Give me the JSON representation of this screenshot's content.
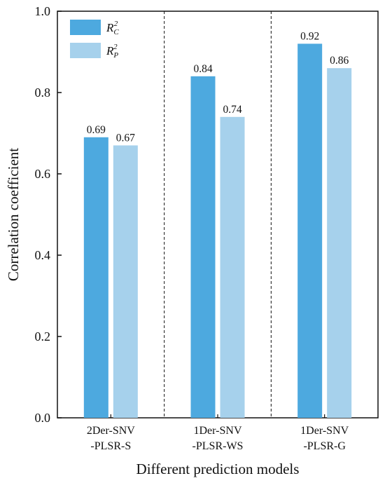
{
  "chart_data": {
    "type": "bar",
    "title": "",
    "xlabel": "Different prediction models",
    "ylabel": "Correlation coefficient",
    "ylim": [
      0.0,
      1.0
    ],
    "yticks": [
      "0.0",
      "0.2",
      "0.4",
      "0.6",
      "0.8",
      "1.0"
    ],
    "categories": [
      [
        "2Der-SNV",
        "-PLSR-S"
      ],
      [
        "1Der-SNV",
        "-PLSR-WS"
      ],
      [
        "1Der-SNV",
        "-PLSR-G"
      ]
    ],
    "series": [
      {
        "name": "R_C^2",
        "values": [
          0.69,
          0.84,
          0.92
        ],
        "labels": [
          "0.69",
          "0.84",
          "0.92"
        ],
        "color": "#4DA9DF"
      },
      {
        "name": "R_P^2",
        "values": [
          0.67,
          0.74,
          0.86
        ],
        "labels": [
          "0.67",
          "0.74",
          "0.86"
        ],
        "color": "#A6D1EC"
      }
    ],
    "legend": {
      "placement": "top-left",
      "entries": [
        {
          "base": "R",
          "sub": "C",
          "sup": "2"
        },
        {
          "base": "R",
          "sub": "P",
          "sup": "2"
        }
      ]
    },
    "group_separators": "dashed",
    "grid": false
  }
}
